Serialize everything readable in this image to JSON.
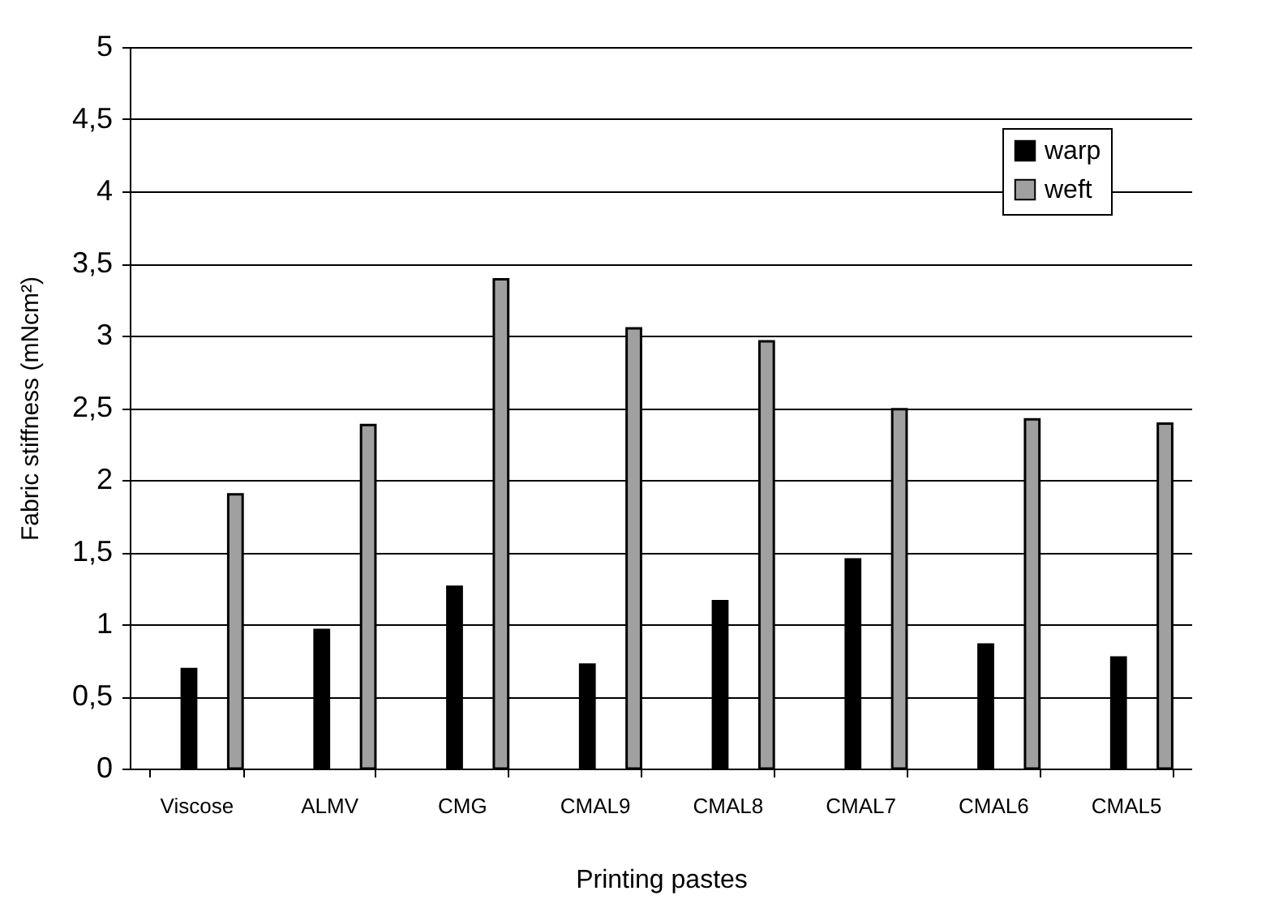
{
  "chart_data": {
    "type": "bar",
    "xlabel": "Printing pastes",
    "ylabel": "Fabric stiffness (mNcm²)",
    "categories": [
      "Viscose",
      "ALMV",
      "CMG",
      "CMAL9",
      "CMAL8",
      "CMAL7",
      "CMAL6",
      "CMAL5"
    ],
    "series": [
      {
        "name": "warp",
        "color": "#000000",
        "values": [
          0.69,
          0.96,
          1.26,
          0.72,
          1.16,
          1.45,
          0.86,
          0.77
        ]
      },
      {
        "name": "weft",
        "color": "#a0a0a0",
        "values": [
          1.9,
          2.38,
          3.39,
          3.05,
          2.96,
          2.49,
          2.42,
          2.39
        ]
      }
    ],
    "ylim": [
      0,
      5
    ],
    "yticks": [
      0,
      {
        "value": 0.5,
        "label": "0,5"
      },
      1,
      {
        "value": 1.5,
        "label": "1,5"
      },
      2,
      {
        "value": 2.5,
        "label": "2,5"
      },
      3,
      {
        "value": 3.5,
        "label": "3,5"
      },
      4,
      {
        "value": 4.5,
        "label": "4,5"
      },
      5
    ],
    "grid": "y",
    "legend": "top right"
  }
}
